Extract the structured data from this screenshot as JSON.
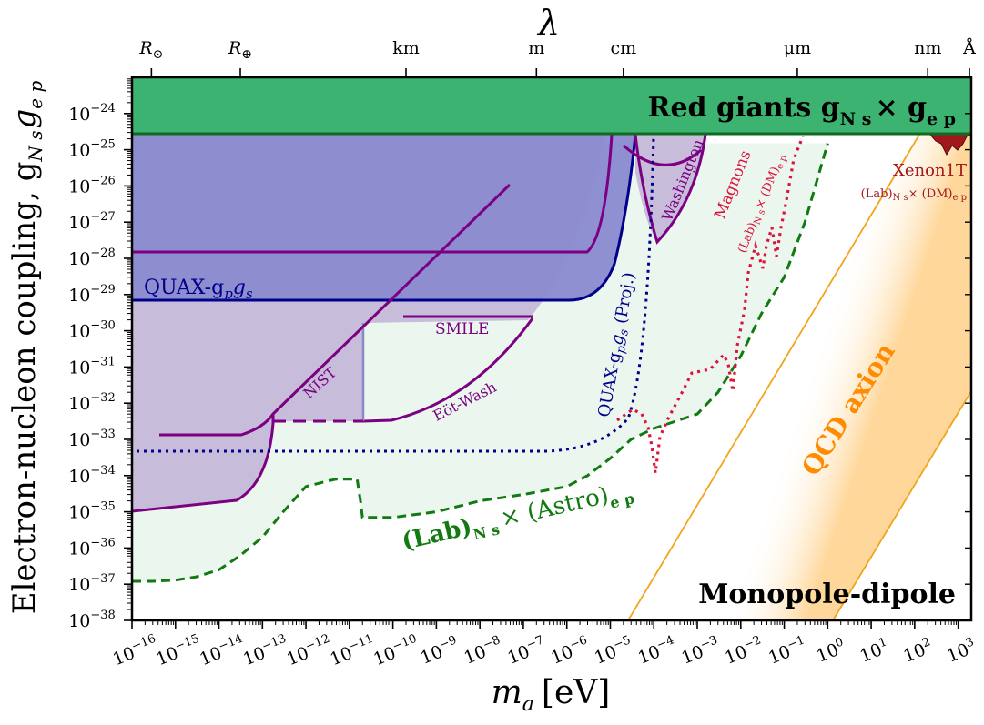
{
  "chart_data": {
    "type": "area",
    "xscale": "log",
    "yscale": "log",
    "xlim": [
      1e-16,
      2000
    ],
    "ylim": [
      1e-38,
      1e-23
    ],
    "xlabel": "m",
    "xlabel_sub": "a",
    "xlabel_unit": "[eV]",
    "ylabel": "Electron-nucleon coupling, g",
    "ylabel_sup_sub": "N s",
    "ylabel_second": "g",
    "ylabel_second_sup_sub": "e p",
    "top_label": "λ",
    "x_ticks": [
      {
        "label": "10",
        "exp": "−16",
        "value": 1e-16
      },
      {
        "label": "10",
        "exp": "−15",
        "value": 1e-15
      },
      {
        "label": "10",
        "exp": "−14",
        "value": 1e-14
      },
      {
        "label": "10",
        "exp": "−13",
        "value": 1e-13
      },
      {
        "label": "10",
        "exp": "−12",
        "value": 1e-12
      },
      {
        "label": "10",
        "exp": "−11",
        "value": 1e-11
      },
      {
        "label": "10",
        "exp": "−10",
        "value": 1e-10
      },
      {
        "label": "10",
        "exp": "−9",
        "value": 1e-09
      },
      {
        "label": "10",
        "exp": "−8",
        "value": 1e-08
      },
      {
        "label": "10",
        "exp": "−7",
        "value": 1e-07
      },
      {
        "label": "10",
        "exp": "−6",
        "value": 1e-06
      },
      {
        "label": "10",
        "exp": "−5",
        "value": 1e-05
      },
      {
        "label": "10",
        "exp": "−4",
        "value": 0.0001
      },
      {
        "label": "10",
        "exp": "−3",
        "value": 0.001
      },
      {
        "label": "10",
        "exp": "−2",
        "value": 0.01
      },
      {
        "label": "10",
        "exp": "−1",
        "value": 0.1
      },
      {
        "label": "10",
        "exp": "0",
        "value": 1
      },
      {
        "label": "10",
        "exp": "1",
        "value": 10
      },
      {
        "label": "10",
        "exp": "2",
        "value": 100
      },
      {
        "label": "10",
        "exp": "3",
        "value": 1000
      }
    ],
    "y_ticks": [
      {
        "label": "10",
        "exp": "−24",
        "value": 1e-24
      },
      {
        "label": "10",
        "exp": "−25",
        "value": 1e-25
      },
      {
        "label": "10",
        "exp": "−26",
        "value": 1e-26
      },
      {
        "label": "10",
        "exp": "−27",
        "value": 1e-27
      },
      {
        "label": "10",
        "exp": "−28",
        "value": 1e-28
      },
      {
        "label": "10",
        "exp": "−29",
        "value": 1e-29
      },
      {
        "label": "10",
        "exp": "−30",
        "value": 1e-30
      },
      {
        "label": "10",
        "exp": "−31",
        "value": 1e-31
      },
      {
        "label": "10",
        "exp": "−32",
        "value": 1e-32
      },
      {
        "label": "10",
        "exp": "−33",
        "value": 1e-33
      },
      {
        "label": "10",
        "exp": "−34",
        "value": 1e-34
      },
      {
        "label": "10",
        "exp": "−35",
        "value": 1e-35
      },
      {
        "label": "10",
        "exp": "−36",
        "value": 1e-36
      },
      {
        "label": "10",
        "exp": "−37",
        "value": 1e-37
      },
      {
        "label": "10",
        "exp": "−38",
        "value": 1e-38
      }
    ],
    "top_ticks": [
      {
        "label": "R",
        "sub": "⊙",
        "value": 2.8e-16
      },
      {
        "label": "R",
        "sub": "⊕",
        "value": 3.1e-14
      },
      {
        "label": "km",
        "value": 2e-10
      },
      {
        "label": "m",
        "value": 2e-07
      },
      {
        "label": "cm",
        "value": 2e-05
      },
      {
        "label": "μm",
        "value": 0.2
      },
      {
        "label": "nm",
        "value": 200
      },
      {
        "label": "Å",
        "value": 2000
      }
    ],
    "regions": [
      {
        "name": "Red giants",
        "color": "#3cb371",
        "y_low": 1.5e-25,
        "y_high": 1e-23,
        "label": "Red giants g",
        "label_sub_sup": "N s",
        "label_times": "× g",
        "label_sub_sup2": "e p"
      },
      {
        "name": "Lab x Astro",
        "color": "#1a7f1a",
        "fill": "#ebf6ee",
        "label": "(Lab)",
        "label_sub_sup": "N s",
        "label_times": "× (Astro)",
        "label_sub_sup2": "e p",
        "x": [
          1e-16,
          3e-16,
          1e-15,
          3e-15,
          1e-14,
          3e-14,
          1e-13,
          3e-13,
          1e-12,
          3e-12,
          5e-12,
          1.5e-11,
          1.8e-11,
          2e-11,
          1e-10,
          1e-09,
          1e-08,
          1e-07,
          1e-06,
          3e-06,
          1e-05,
          3e-05,
          0.0001,
          0.001,
          0.003,
          0.01,
          0.03,
          0.1,
          0.3,
          1
        ],
        "y": [
          1.2e-37,
          1.2e-37,
          1.3e-37,
          1.6e-37,
          2.5e-37,
          6e-37,
          2e-36,
          1e-35,
          5e-35,
          7e-35,
          8e-35,
          8e-35,
          2e-35,
          7e-36,
          7e-36,
          1e-35,
          2e-35,
          3e-35,
          5e-35,
          1e-34,
          3e-34,
          1e-33,
          2e-33,
          5e-33,
          2e-32,
          2e-31,
          3e-30,
          3e-29,
          1e-27,
          1.5e-25
        ]
      },
      {
        "name": "QUAX",
        "color": "#00008b",
        "fill": "#8888d0",
        "label": "QUAX-g",
        "label_sub": "p",
        "label_mid": "g",
        "label_sub2": "s",
        "x": [
          1e-16,
          1e-07,
          2e-06,
          5e-06,
          1e-05,
          2e-05,
          2.5e-05,
          3e-05
        ],
        "y": [
          4e-30,
          4e-30,
          4e-30,
          6e-30,
          2e-29,
          2e-27,
          1e-26,
          1.5e-25
        ]
      },
      {
        "name": "Eöt-Wash",
        "color": "#7b0082",
        "label": "Eöt-Wash"
      },
      {
        "name": "SMILE",
        "color": "#7b0082",
        "label": "SMILE"
      },
      {
        "name": "NIST",
        "color": "#7b0082",
        "label": "NIST"
      },
      {
        "name": "Washington",
        "color": "#7b0082",
        "label": "Washington"
      },
      {
        "name": "QUAX projected",
        "color": "#00008b",
        "label": "QUAX-g",
        "label_sub": "p",
        "label_mid": "g",
        "label_sub2": "s",
        "label_tail": " (Proj.)"
      },
      {
        "name": "Magnons",
        "color": "#dc143c",
        "label": "Magnons",
        "label2": "(Lab)",
        "label2_sub_sup": "N s",
        "label2_times": "× (DM)",
        "label2_sub_sup2": "e p"
      },
      {
        "name": "Xenon1T",
        "color": "#a0171d",
        "label": "Xenon1T",
        "label2": "(Lab)",
        "label2_sub_sup": "N s",
        "label2_times": "× (DM)",
        "label2_sub_sup2": "e p"
      },
      {
        "name": "QCD axion",
        "color": "#ff8c00",
        "label": "QCD axion"
      }
    ],
    "corner_label": "Monopole-dipole"
  }
}
